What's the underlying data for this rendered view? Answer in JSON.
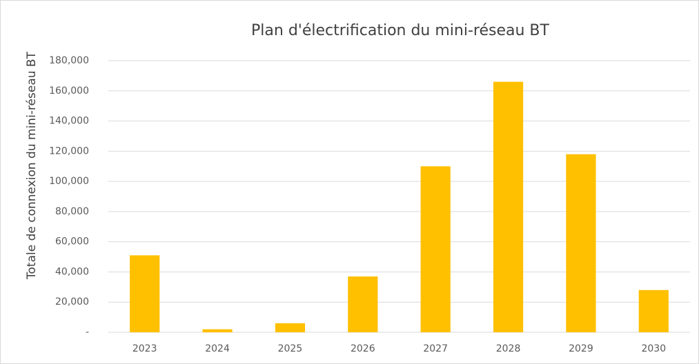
{
  "chart_data": {
    "type": "bar",
    "title": "Plan d'électrification du mini-réseau BT",
    "y_label": "Totale de connexion du mini-réseau BT",
    "categories": [
      "2023",
      "2024",
      "2025",
      "2026",
      "2027",
      "2028",
      "2029",
      "2030"
    ],
    "values": [
      51000,
      2000,
      6000,
      37000,
      110000,
      166000,
      118000,
      28000
    ],
    "color": "#ffc000",
    "ylim": [
      0,
      180000
    ],
    "yticks": [
      {
        "value": 0,
        "label": "-"
      },
      {
        "value": 20000,
        "label": "20,000"
      },
      {
        "value": 40000,
        "label": "40,000"
      },
      {
        "value": 60000,
        "label": "60,000"
      },
      {
        "value": 80000,
        "label": "80,000"
      },
      {
        "value": 100000,
        "label": "100,000"
      },
      {
        "value": 120000,
        "label": "120,000"
      },
      {
        "value": 140000,
        "label": "140,000"
      },
      {
        "value": 160000,
        "label": "160,000"
      },
      {
        "value": 180000,
        "label": "180,000"
      }
    ],
    "grid": true
  }
}
